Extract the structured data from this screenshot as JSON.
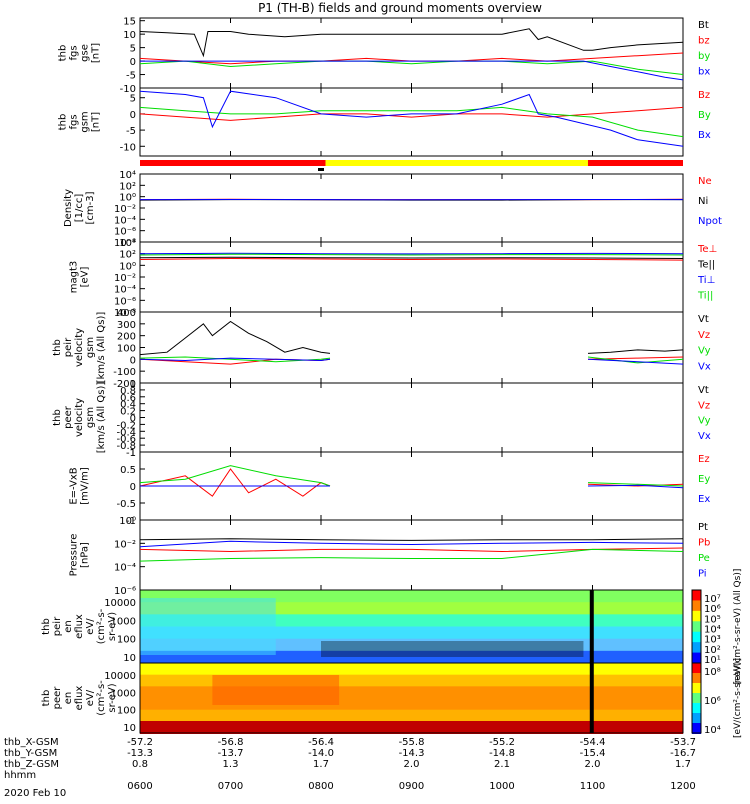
{
  "title": "P1 (TH-B) fields and ground moments overview",
  "colors": {
    "black": "#000000",
    "red": "#ff0000",
    "green": "#00dd00",
    "blue": "#0000ff",
    "yellow": "#ffff00"
  },
  "time": {
    "start_hour": 6,
    "end_hour": 12,
    "tick_hours": [
      6,
      7,
      8,
      9,
      10,
      11,
      12
    ],
    "tick_labels": [
      "0600",
      "0700",
      "0800",
      "0900",
      "1000",
      "1100",
      "1200"
    ],
    "date_label": "2020 Feb 10"
  },
  "mode_bar": [
    {
      "start": 6.0,
      "end": 8.05,
      "color": "red"
    },
    {
      "start": 8.05,
      "end": 10.95,
      "color": "yellow"
    },
    {
      "start": 10.95,
      "end": 12.0,
      "color": "red"
    }
  ],
  "chart_data": [
    {
      "id": "fgs_gse",
      "type": "line",
      "ylabel": [
        "thb",
        "fgs",
        "gse",
        "[nT]"
      ],
      "yticks": [
        15,
        10,
        5,
        0,
        -5,
        -10
      ],
      "ylim": [
        -10,
        16
      ],
      "series": [
        {
          "name": "Bt",
          "color": "black",
          "x": [
            6.0,
            6.3,
            6.6,
            6.7,
            6.75,
            7.0,
            7.2,
            7.6,
            8.0,
            8.5,
            9.0,
            9.5,
            10.0,
            10.3,
            10.4,
            10.5,
            10.9,
            11.0,
            11.2,
            11.5,
            12.0
          ],
          "y": [
            11,
            10.5,
            10,
            2,
            11,
            11,
            10,
            9,
            10,
            10,
            10,
            10,
            10,
            12,
            8,
            9,
            4,
            4,
            5,
            6,
            7
          ]
        },
        {
          "name": "bz",
          "color": "red",
          "x": [
            6.0,
            6.5,
            7.0,
            7.5,
            8.0,
            8.5,
            9.0,
            9.5,
            10.0,
            10.5,
            11.0,
            11.5,
            12.0
          ],
          "y": [
            1,
            0,
            -1,
            0,
            0,
            1,
            0,
            0,
            1,
            0,
            1,
            2,
            3
          ]
        },
        {
          "name": "by",
          "color": "green",
          "x": [
            6.0,
            6.5,
            7.0,
            7.5,
            8.0,
            8.5,
            9.0,
            9.5,
            10.0,
            10.5,
            11.0,
            11.5,
            12.0
          ],
          "y": [
            -1,
            0,
            -2,
            -1,
            0,
            0,
            -1,
            0,
            0,
            -1,
            0,
            -3,
            -5
          ]
        },
        {
          "name": "bx",
          "color": "blue",
          "x": [
            6.0,
            7.0,
            8.0,
            9.0,
            10.0,
            10.9,
            11.2,
            11.5,
            11.8,
            12.0
          ],
          "y": [
            0,
            0,
            0,
            0,
            0,
            0,
            -2,
            -4,
            -6,
            -7
          ]
        }
      ]
    },
    {
      "id": "fgs_gsm",
      "type": "line",
      "ylabel": [
        "thb",
        "fgs",
        "gsm",
        "[nT]"
      ],
      "yticks": [
        5,
        0,
        -5,
        -10
      ],
      "ylim": [
        -13,
        8
      ],
      "series": [
        {
          "name": "Bz",
          "color": "red",
          "x": [
            6.0,
            6.5,
            7.0,
            7.5,
            8.0,
            8.5,
            9.0,
            9.5,
            10.0,
            10.5,
            11.0,
            11.5,
            12.0
          ],
          "y": [
            0,
            -1,
            -2,
            -1,
            0,
            0,
            -1,
            0,
            0,
            -1,
            0,
            1,
            2
          ]
        },
        {
          "name": "By",
          "color": "green",
          "x": [
            6.0,
            6.5,
            7.0,
            7.5,
            8.0,
            8.5,
            9.0,
            9.5,
            10.0,
            10.5,
            11.0,
            11.5,
            12.0
          ],
          "y": [
            2,
            1,
            0,
            0,
            1,
            1,
            1,
            1,
            2,
            0,
            -1,
            -5,
            -7
          ]
        },
        {
          "name": "Bx",
          "color": "blue",
          "x": [
            6.0,
            6.5,
            6.7,
            6.8,
            7.0,
            7.5,
            8.0,
            8.5,
            9.0,
            9.5,
            10.0,
            10.3,
            10.4,
            10.6,
            10.9,
            11.2,
            11.5,
            12.0
          ],
          "y": [
            7,
            6,
            5,
            -4,
            7,
            5,
            0,
            -1,
            0,
            0,
            3,
            6,
            0,
            -1,
            -3,
            -5,
            -8,
            -10
          ]
        }
      ]
    },
    {
      "id": "density",
      "type": "line",
      "ylabel": [
        "Density",
        "[1/cc]",
        "[cm-3]"
      ],
      "ytick_labels": [
        "10⁴",
        "10²",
        "10⁰",
        "10⁻²",
        "10⁻⁴",
        "10⁻⁶",
        "10⁻⁸"
      ],
      "log_range": [
        -8,
        4
      ],
      "series": [
        {
          "name": "Ne",
          "color": "red",
          "x": [
            6.0,
            7.0,
            8.0,
            9.0,
            10.0,
            11.0,
            12.0
          ],
          "y": [
            0.3,
            0.35,
            0.3,
            0.3,
            0.3,
            0.3,
            0.35
          ]
        },
        {
          "name": "Ni",
          "color": "black",
          "x": [
            6.0,
            7.0,
            8.0,
            9.0,
            10.0,
            11.0,
            12.0
          ],
          "y": [
            0.25,
            0.3,
            0.28,
            0.25,
            0.25,
            0.3,
            0.3
          ]
        },
        {
          "name": "Npot",
          "color": "blue",
          "x": [
            6.0,
            7.0,
            8.0,
            9.0,
            10.0,
            11.0,
            12.0
          ],
          "y": [
            0.3,
            0.32,
            0.3,
            0.28,
            0.3,
            0.32,
            0.3
          ]
        }
      ]
    },
    {
      "id": "temperature",
      "type": "line",
      "ylabel": [
        "magt3",
        "[eV]"
      ],
      "ytick_labels": [
        "10⁴",
        "10²",
        "10⁰",
        "10⁻²",
        "10⁻⁴",
        "10⁻⁶",
        "10⁻⁸"
      ],
      "log_range": [
        -8,
        4
      ],
      "series": [
        {
          "name": "Te⊥",
          "color": "red",
          "x": [
            6.0,
            7.0,
            8.0,
            9.0,
            10.0,
            11.0,
            12.0
          ],
          "y": [
            10,
            15,
            12,
            10,
            12,
            10,
            8
          ]
        },
        {
          "name": "Te||",
          "color": "black",
          "x": [
            6.0,
            7.0,
            8.0,
            9.0,
            10.0,
            11.0,
            12.0
          ],
          "y": [
            20,
            25,
            20,
            18,
            20,
            18,
            15
          ]
        },
        {
          "name": "Ti⊥",
          "color": "blue",
          "x": [
            6.0,
            7.0,
            8.0,
            9.0,
            10.0,
            11.0,
            12.0
          ],
          "y": [
            100,
            120,
            100,
            90,
            100,
            110,
            100
          ]
        },
        {
          "name": "Ti||",
          "color": "green",
          "x": [
            6.0,
            7.0,
            8.0,
            9.0,
            10.0,
            11.0,
            12.0
          ],
          "y": [
            60,
            80,
            70,
            60,
            70,
            70,
            60
          ]
        }
      ]
    },
    {
      "id": "peir_velocity",
      "type": "line",
      "ylabel": [
        "thb",
        "peir",
        "velocity",
        "gsm",
        "[km/s (All Qs)]"
      ],
      "yticks": [
        400,
        300,
        200,
        100,
        0,
        -100,
        -200
      ],
      "ylim": [
        -200,
        400
      ],
      "series": [
        {
          "name": "Vt",
          "color": "black",
          "x": [
            6.0,
            6.3,
            6.5,
            6.7,
            6.8,
            7.0,
            7.2,
            7.4,
            7.6,
            7.8,
            8.0,
            8.1,
            null,
            10.95,
            11.2,
            11.5,
            11.8,
            12.0
          ],
          "y": [
            40,
            60,
            180,
            300,
            200,
            320,
            220,
            150,
            60,
            100,
            60,
            50,
            null,
            50,
            60,
            80,
            70,
            80
          ]
        },
        {
          "name": "Vz",
          "color": "red",
          "x": [
            6.0,
            6.5,
            7.0,
            7.5,
            8.0,
            8.1,
            null,
            10.95,
            11.5,
            12.0
          ],
          "y": [
            0,
            -20,
            -40,
            0,
            -10,
            0,
            null,
            0,
            10,
            20
          ]
        },
        {
          "name": "Vy",
          "color": "green",
          "x": [
            6.0,
            6.5,
            7.0,
            7.5,
            8.0,
            8.1,
            null,
            10.95,
            11.5,
            12.0
          ],
          "y": [
            10,
            20,
            0,
            -20,
            0,
            10,
            null,
            20,
            -30,
            0
          ]
        },
        {
          "name": "Vx",
          "color": "blue",
          "x": [
            6.0,
            6.5,
            7.0,
            7.5,
            8.0,
            8.1,
            null,
            10.95,
            11.5,
            12.0
          ],
          "y": [
            0,
            -10,
            10,
            0,
            -10,
            0,
            null,
            0,
            -20,
            -40
          ]
        }
      ]
    },
    {
      "id": "peer_velocity",
      "type": "line",
      "ylabel": [
        "thb",
        "peer",
        "velocity",
        "gsm",
        "[km/s (All Qs)]"
      ],
      "yticks": [
        1.0,
        0.8,
        0.6,
        0.4,
        0.2,
        0.0,
        -0.2,
        -0.4,
        -0.6,
        -0.8,
        -1.0
      ],
      "ylim": [
        -1,
        1
      ],
      "series": [
        {
          "name": "Vt",
          "color": "black",
          "x": [],
          "y": []
        },
        {
          "name": "Vz",
          "color": "red",
          "x": [],
          "y": []
        },
        {
          "name": "Vy",
          "color": "green",
          "x": [],
          "y": []
        },
        {
          "name": "Vx",
          "color": "blue",
          "x": [],
          "y": []
        }
      ]
    },
    {
      "id": "efield",
      "type": "line",
      "ylabel": [
        "E=-VxB",
        "[mV/m]"
      ],
      "yticks": [
        1.0,
        0.5,
        0.0,
        -0.5,
        -1.0
      ],
      "ylim": [
        -1,
        1
      ],
      "series": [
        {
          "name": "Ez",
          "color": "red",
          "x": [
            6.0,
            6.5,
            6.8,
            7.0,
            7.2,
            7.5,
            7.8,
            8.0,
            8.1,
            null,
            10.95,
            11.5,
            12.0
          ],
          "y": [
            0,
            0.3,
            -0.3,
            0.5,
            -0.2,
            0.2,
            -0.3,
            0.1,
            0,
            null,
            0.05,
            0.0,
            0.05
          ]
        },
        {
          "name": "Ey",
          "color": "green",
          "x": [
            6.0,
            6.5,
            7.0,
            7.5,
            8.0,
            8.1,
            null,
            10.95,
            11.5,
            12.0
          ],
          "y": [
            0.1,
            0.2,
            0.6,
            0.3,
            0.1,
            0,
            null,
            0.1,
            0.05,
            0
          ]
        },
        {
          "name": "Ex",
          "color": "blue",
          "x": [
            6.0,
            7.0,
            8.0,
            8.1,
            null,
            10.95,
            11.5,
            12.0
          ],
          "y": [
            0,
            0,
            0,
            0,
            null,
            0,
            0.02,
            -0.05
          ]
        }
      ]
    },
    {
      "id": "pressure",
      "type": "line",
      "ylabel": [
        "Pressure",
        "[nPa]"
      ],
      "ytick_labels": [
        "10⁰",
        "10⁻²",
        "10⁻⁴",
        "10⁻⁶"
      ],
      "log_range": [
        -6,
        0
      ],
      "series": [
        {
          "name": "Pt",
          "color": "black",
          "x": [
            6.0,
            7.0,
            8.0,
            9.0,
            10.0,
            11.0,
            12.0
          ],
          "y": [
            0.02,
            0.025,
            0.02,
            0.018,
            0.02,
            0.02,
            0.025
          ]
        },
        {
          "name": "Pb",
          "color": "red",
          "x": [
            6.0,
            7.0,
            8.0,
            9.0,
            10.0,
            11.0,
            12.0
          ],
          "y": [
            0.003,
            0.002,
            0.003,
            0.003,
            0.002,
            0.003,
            0.004
          ]
        },
        {
          "name": "Pe",
          "color": "green",
          "x": [
            6.0,
            7.0,
            8.0,
            9.0,
            10.0,
            11.0,
            12.0
          ],
          "y": [
            0.0003,
            0.0005,
            0.0006,
            0.0005,
            0.0005,
            0.003,
            0.002
          ]
        },
        {
          "name": "Pi",
          "color": "blue",
          "x": [
            6.0,
            7.0,
            8.0,
            9.0,
            10.0,
            11.0,
            12.0
          ],
          "y": [
            0.005,
            0.015,
            0.01,
            0.008,
            0.01,
            0.012,
            0.01
          ]
        }
      ]
    },
    {
      "id": "peir_spectrogram",
      "type": "heatmap",
      "ylabel": [
        "thb",
        "peir",
        "en",
        "eflux",
        "eV/",
        "(cm²-s-",
        "sr-eV)"
      ],
      "ytick_labels": [
        "10000",
        "1000",
        "100",
        "10"
      ],
      "colorbar_labels": [
        "10⁷",
        "10⁶",
        "10⁵",
        "10⁴",
        "10³",
        "10²",
        "10¹"
      ],
      "colorbar_title": "[eV/(cm²-s-sr-eV) (All Qs)]"
    },
    {
      "id": "peer_spectrogram",
      "type": "heatmap",
      "ylabel": [
        "thb",
        "peer",
        "en",
        "eflux",
        "eV/",
        "(cm²-s-",
        "sr-eV)"
      ],
      "ytick_labels": [
        "10000",
        "1000",
        "100",
        "10"
      ],
      "colorbar_labels": [
        "10⁸",
        "10⁶",
        "10⁴"
      ],
      "colorbar_title": "[eV/(cm²-s-sr-eV)]"
    }
  ],
  "position_rows": [
    {
      "label": "thb_X-GSM",
      "values": [
        "-57.2",
        "-56.8",
        "-56.4",
        "-55.8",
        "-55.2",
        "-54.4",
        "-53.7"
      ]
    },
    {
      "label": "thb_Y-GSM",
      "values": [
        "-13.3",
        "-13.7",
        "-14.0",
        "-14.3",
        "-14.8",
        "-15.4",
        "-16.7"
      ]
    },
    {
      "label": "thb_Z-GSM",
      "values": [
        "0.8",
        "1.3",
        "1.7",
        "2.0",
        "2.1",
        "2.0",
        "1.7"
      ]
    },
    {
      "label": "hhmm",
      "values": []
    }
  ]
}
